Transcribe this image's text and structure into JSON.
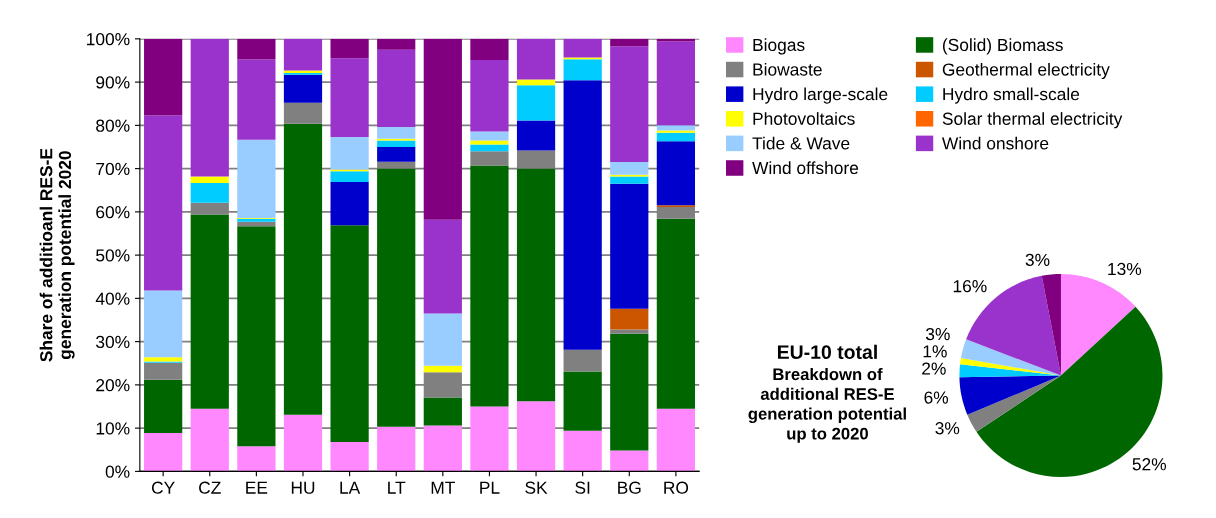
{
  "chart_data": [
    {
      "type": "bar",
      "stacked": true,
      "ylabel": "Share of additioanl RES-E\ngeneration potential 2020",
      "categories": [
        "CY",
        "CZ",
        "EE",
        "HU",
        "LA",
        "LT",
        "MT",
        "PL",
        "SK",
        "SI",
        "BG",
        "RO"
      ],
      "ylim": [
        0,
        100
      ],
      "yticks": [
        {
          "value": 0,
          "label": "0%"
        },
        {
          "value": 10,
          "label": "10%"
        },
        {
          "value": 20,
          "label": "20%"
        },
        {
          "value": 30,
          "label": "30%"
        },
        {
          "value": 40,
          "label": "40%"
        },
        {
          "value": 50,
          "label": "50%"
        },
        {
          "value": 60,
          "label": "60%"
        },
        {
          "value": 70,
          "label": "70%"
        },
        {
          "value": 80,
          "label": "80%"
        },
        {
          "value": 90,
          "label": "90%"
        },
        {
          "value": 100,
          "label": "100%"
        }
      ],
      "grid": "y",
      "legend": "top right",
      "series": [
        {
          "name": "Biogas",
          "color": "#ff88ff",
          "values": [
            8.9,
            14.5,
            5.8,
            13.1,
            6.8,
            10.3,
            10.6,
            15.0,
            16.2,
            9.4,
            4.8,
            14.5
          ]
        },
        {
          "name": "(Solid) Biomass",
          "color": "#006600",
          "values": [
            12.3,
            44.9,
            50.9,
            67.3,
            50.1,
            59.7,
            6.5,
            55.7,
            53.8,
            13.7,
            27.0,
            43.9
          ]
        },
        {
          "name": "Biowaste",
          "color": "#808080",
          "values": [
            3.9,
            2.7,
            1.0,
            4.8,
            0,
            1.6,
            5.8,
            3.3,
            4.2,
            5.0,
            1.0,
            2.7
          ]
        },
        {
          "name": "Geothermal electricity",
          "color": "#cc5500",
          "values": [
            0,
            0,
            0,
            0,
            0,
            0,
            0,
            0,
            0,
            0,
            4.8,
            0.4
          ]
        },
        {
          "name": "Hydro large-scale",
          "color": "#0000cc",
          "values": [
            0,
            0,
            0,
            6.5,
            10.0,
            3.4,
            0,
            0,
            6.9,
            62.3,
            28.9,
            14.8
          ]
        },
        {
          "name": "Hydro small-scale",
          "color": "#00ccff",
          "values": [
            0.3,
            4.6,
            0.7,
            0.4,
            2.5,
            1.5,
            0,
            1.6,
            8.2,
            4.9,
            1.7,
            2.0
          ]
        },
        {
          "name": "Photovoltaics",
          "color": "#ffff00",
          "values": [
            1.0,
            1.5,
            0.2,
            0.6,
            0.4,
            0.4,
            1.5,
            0.9,
            1.3,
            0.4,
            0.4,
            0.5
          ]
        },
        {
          "name": "Solar thermal electricity",
          "color": "#ff6600",
          "values": [
            0,
            0,
            0,
            0,
            0,
            0,
            0,
            0,
            0,
            0,
            0,
            0
          ]
        },
        {
          "name": "Tide & Wave",
          "color": "#99ccff",
          "values": [
            15.4,
            0,
            18.1,
            0,
            7.5,
            2.7,
            12.1,
            2.1,
            0,
            0,
            2.9,
            1.2
          ]
        },
        {
          "name": "Wind onshore",
          "color": "#9933cc",
          "values": [
            40.5,
            31.8,
            18.5,
            7.3,
            18.2,
            17.9,
            21.7,
            16.5,
            9.4,
            4.3,
            26.8,
            19.4
          ]
        },
        {
          "name": "Wind offshore",
          "color": "#800080",
          "values": [
            17.7,
            0,
            4.8,
            0,
            4.5,
            2.5,
            41.8,
            4.9,
            0,
            0,
            1.7,
            0.6
          ]
        }
      ]
    },
    {
      "type": "pie",
      "title": "EU-10 total",
      "subtitle": "Breakdown of\nadditional RES-E\ngeneration potential\nup to 2020",
      "categories": [
        null,
        null,
        null,
        null,
        null,
        null,
        null,
        null,
        null
      ],
      "values": [
        13,
        52,
        3,
        6,
        2,
        1,
        3,
        16,
        3
      ],
      "colors": [
        "#ff88ff",
        "#006600",
        "#808080",
        "#0000cc",
        "#00ccff",
        "#ffff00",
        "#99ccff",
        "#9933cc",
        "#800080"
      ],
      "value_labels": [
        "13%",
        "52%",
        "3%",
        "6%",
        "2%",
        "1%",
        "3%",
        "16%",
        "3%"
      ]
    }
  ]
}
